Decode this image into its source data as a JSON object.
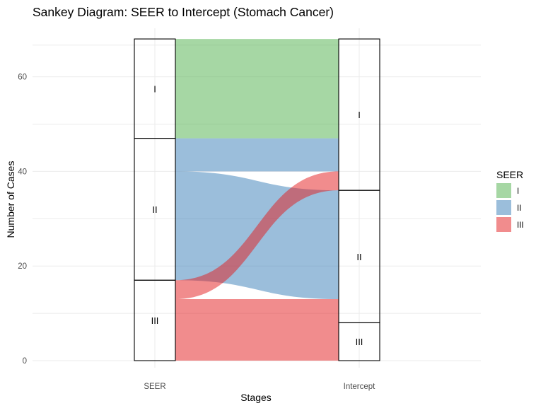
{
  "chart_data": {
    "type": "sankey",
    "title": "Sankey Diagram: SEER to Intercept (Stomach Cancer)",
    "xlabel": "Stages",
    "ylabel": "Number of Cases",
    "axes": [
      "SEER",
      "Intercept"
    ],
    "ylim": [
      0,
      68
    ],
    "yticks": [
      0,
      20,
      40,
      60
    ],
    "grid": true,
    "strata_order": [
      "I",
      "II",
      "III"
    ],
    "strata": {
      "SEER": [
        {
          "label": "I",
          "value": 21
        },
        {
          "label": "II",
          "value": 30
        },
        {
          "label": "III",
          "value": 17
        }
      ],
      "Intercept": [
        {
          "label": "I",
          "value": 32
        },
        {
          "label": "II",
          "value": 28
        },
        {
          "label": "III",
          "value": 8
        }
      ]
    },
    "flows": [
      {
        "from": "I",
        "to": "I",
        "value": 21
      },
      {
        "from": "II",
        "to": "I",
        "value": 7
      },
      {
        "from": "II",
        "to": "II",
        "value": 23
      },
      {
        "from": "III",
        "to": "I",
        "value": 4
      },
      {
        "from": "III",
        "to": "II",
        "value": 5
      },
      {
        "from": "III",
        "to": "III",
        "value": 8
      }
    ],
    "legend": {
      "title": "SEER",
      "position": "right",
      "entries": [
        {
          "label": "I",
          "color": "#4daf4a"
        },
        {
          "label": "II",
          "color": "#377eb8"
        },
        {
          "label": "III",
          "color": "#e41a1c"
        }
      ]
    },
    "flow_opacity": 0.5
  }
}
